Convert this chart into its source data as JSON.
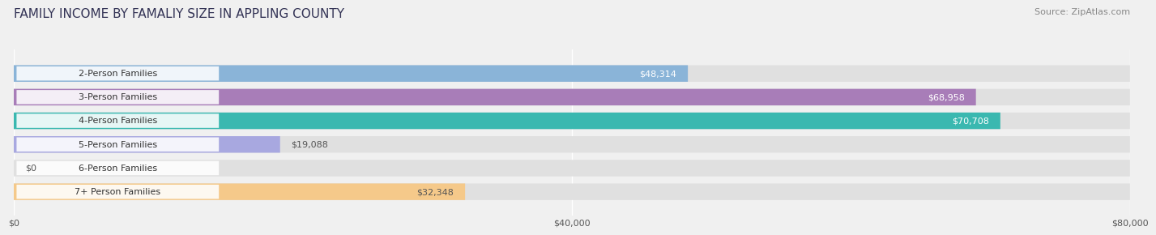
{
  "title": "FAMILY INCOME BY FAMALIY SIZE IN APPLING COUNTY",
  "source": "Source: ZipAtlas.com",
  "categories": [
    "2-Person Families",
    "3-Person Families",
    "4-Person Families",
    "5-Person Families",
    "6-Person Families",
    "7+ Person Families"
  ],
  "values": [
    48314,
    68958,
    70708,
    19088,
    0,
    32348
  ],
  "bar_colors": [
    "#8ab4d8",
    "#a87db8",
    "#3ab8b0",
    "#a8a8e0",
    "#f4a0b4",
    "#f5c98a"
  ],
  "label_colors": [
    "white",
    "white",
    "white",
    "#555555",
    "#555555",
    "#555555"
  ],
  "xlim": [
    0,
    80000
  ],
  "xticks": [
    0,
    40000,
    80000
  ],
  "xtick_labels": [
    "$0",
    "$40,000",
    "$80,000"
  ],
  "background_color": "#f0f0f0",
  "bar_background_color": "#e0e0e0",
  "title_fontsize": 11,
  "source_fontsize": 8,
  "label_fontsize": 8,
  "category_fontsize": 8
}
